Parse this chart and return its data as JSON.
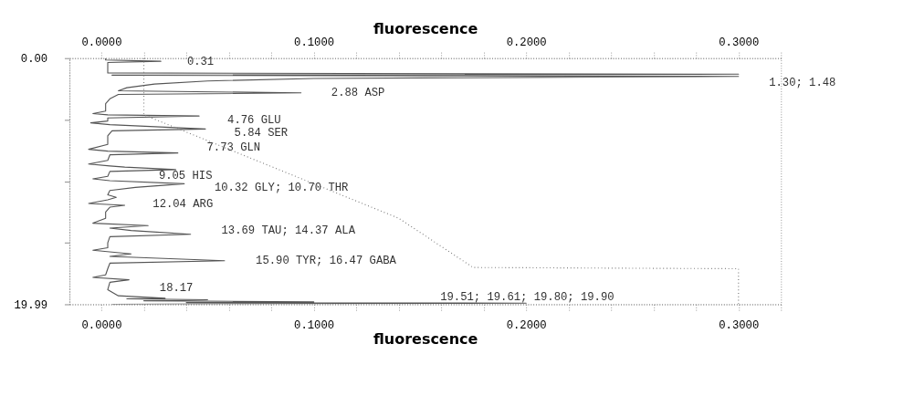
{
  "chart_data": {
    "type": "line",
    "xlabel": "fluorescence",
    "x2label": "fluorescence",
    "xlim": [
      -0.015,
      0.32
    ],
    "xticks": [
      {
        "value": 0,
        "label": "0.0000"
      },
      {
        "value": 0.02,
        "label": null
      },
      {
        "value": 0.04,
        "label": null
      },
      {
        "value": 0.06,
        "label": null
      },
      {
        "value": 0.08,
        "label": null
      },
      {
        "value": 0.1,
        "label": "0.1000"
      },
      {
        "value": 0.12,
        "label": null
      },
      {
        "value": 0.14,
        "label": null
      },
      {
        "value": 0.16,
        "label": null
      },
      {
        "value": 0.18,
        "label": null
      },
      {
        "value": 0.2,
        "label": "0.2000"
      },
      {
        "value": 0.22,
        "label": null
      },
      {
        "value": 0.24,
        "label": null
      },
      {
        "value": 0.26,
        "label": null
      },
      {
        "value": 0.28,
        "label": null
      },
      {
        "value": 0.3,
        "label": "0.3000"
      },
      {
        "value": 0.32,
        "label": null
      }
    ],
    "x2lim": [
      -0.015,
      0.32
    ],
    "x2ticks": [
      {
        "value": 0,
        "label": "0.0000"
      },
      {
        "value": 0.02,
        "label": null
      },
      {
        "value": 0.04,
        "label": null
      },
      {
        "value": 0.06,
        "label": null
      },
      {
        "value": 0.08,
        "label": null
      },
      {
        "value": 0.1,
        "label": "0.1000"
      },
      {
        "value": 0.12,
        "label": null
      },
      {
        "value": 0.14,
        "label": null
      },
      {
        "value": 0.16,
        "label": null
      },
      {
        "value": 0.18,
        "label": null
      },
      {
        "value": 0.2,
        "label": "0.2000"
      },
      {
        "value": 0.22,
        "label": null
      },
      {
        "value": 0.24,
        "label": null
      },
      {
        "value": 0.26,
        "label": null
      },
      {
        "value": 0.28,
        "label": null
      },
      {
        "value": 0.3,
        "label": "0.3000"
      },
      {
        "value": 0.32,
        "label": null
      }
    ],
    "ylim": [
      19.99,
      0
    ],
    "yticks": [
      {
        "value": 0,
        "label": "0.00"
      },
      {
        "value": 5,
        "label": null
      },
      {
        "value": 10,
        "label": null
      },
      {
        "value": 15,
        "label": null
      },
      {
        "value": 19.99,
        "label": "19.99"
      }
    ],
    "grid": false,
    "series": [
      {
        "color": "#555555",
        "line_style": "solid",
        "x": [
          0.002,
          0.002,
          0.028,
          0.003,
          0.003,
          0.003,
          0.3,
          0.005,
          0.3,
          0.1,
          0.05,
          0.025,
          0.012,
          0.008,
          0.094,
          0.008,
          0.004,
          0.002,
          0.002,
          -0.004,
          0.003,
          0.046,
          0.003,
          0.003,
          -0.005,
          0.004,
          0.049,
          0.005,
          0.003,
          0.003,
          -0.006,
          0.003,
          0.036,
          0.004,
          0.003,
          -0.006,
          0.004,
          0.011,
          0.035,
          0.004,
          0.003,
          -0.004,
          0.004,
          0.039,
          0.016,
          0.004,
          0.003,
          0.007,
          0.003,
          -0.006,
          0.011,
          0.004,
          0.002,
          0.002,
          -0.004,
          0.022,
          0.004,
          0.014,
          0.042,
          0.004,
          0.003,
          0.003,
          -0.004,
          0.014,
          0.004,
          0.058,
          0.004,
          0.003,
          0.002,
          -0.004,
          0.013,
          0.004,
          0.003,
          0.008,
          0.03,
          0.012,
          0.05,
          0.02,
          0.1,
          0.04,
          0.2,
          0.06,
          0.005
        ],
        "values": [
          0,
          0.15,
          0.25,
          0.35,
          0.9,
          1.2,
          1.3,
          1.38,
          1.48,
          1.65,
          1.85,
          2.1,
          2.4,
          2.65,
          2.82,
          2.95,
          3.3,
          3.7,
          4.3,
          4.5,
          4.6,
          4.7,
          4.85,
          5.1,
          5.25,
          5.4,
          5.75,
          5.9,
          6.3,
          7.0,
          7.4,
          7.55,
          7.7,
          7.85,
          8.3,
          8.6,
          8.75,
          8.85,
          9.05,
          9.2,
          9.6,
          9.8,
          9.95,
          10.2,
          10.5,
          10.75,
          11.1,
          11.3,
          11.5,
          11.8,
          11.95,
          12.1,
          12.5,
          13.0,
          13.4,
          13.6,
          13.8,
          14.0,
          14.3,
          14.5,
          15.0,
          15.4,
          15.6,
          15.9,
          16.1,
          16.45,
          16.65,
          17.1,
          17.6,
          17.8,
          18.0,
          18.2,
          18.8,
          19.3,
          19.5,
          19.55,
          19.62,
          19.7,
          19.8,
          19.85,
          19.9,
          19.95,
          19.99
        ]
      },
      {
        "color": "#777777",
        "line_style": "dotted",
        "x": [
          0.02,
          0.02,
          0.14,
          0.175,
          0.3,
          0.3
        ],
        "values": [
          0,
          4.6,
          13.0,
          17.0,
          17.1,
          19.99
        ]
      }
    ],
    "annotations": [
      "0.31",
      "1.30; 1.48",
      "2.88 ASP",
      "4.76 GLU",
      "5.84 SER",
      "7.73 GLN",
      "9.05 HIS",
      "10.32 GLY; 10.70 THR",
      "12.04 ARG",
      "13.69 TAU; 14.37 ALA",
      "15.90 TYR; 16.47 GABA",
      "18.17",
      "19.51; 19.61; 19.80; 19.90"
    ]
  }
}
